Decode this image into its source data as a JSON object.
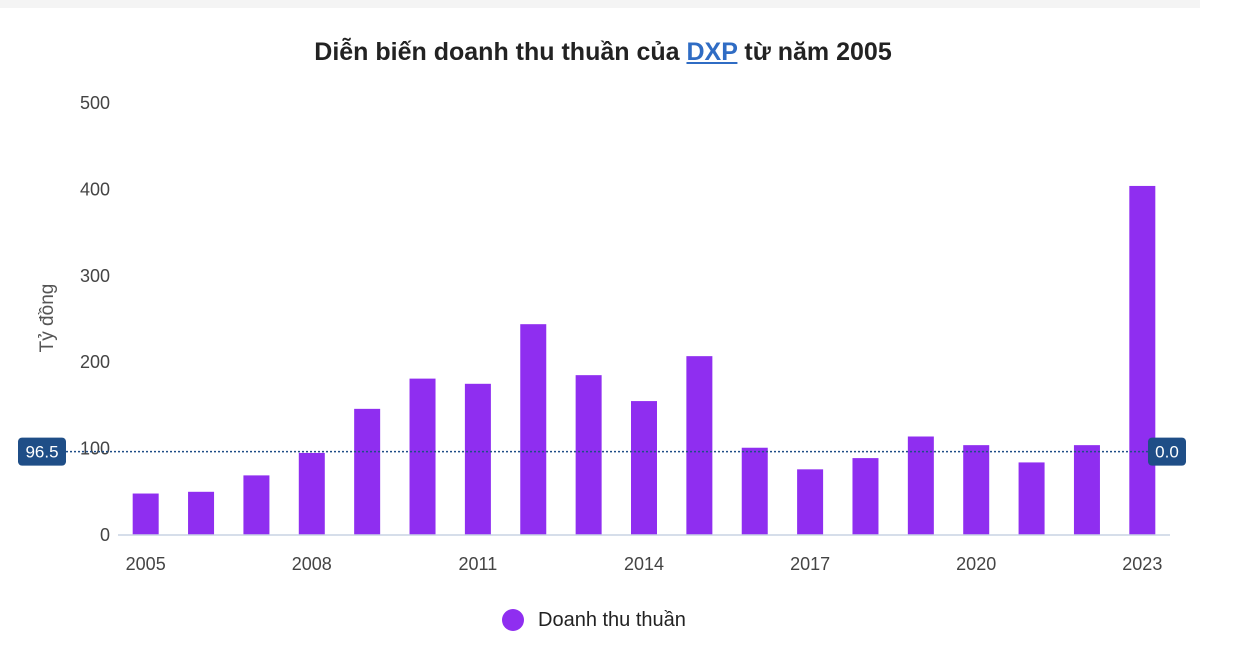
{
  "colors": {
    "bar": "#8f2ef0",
    "badge": "#1f4e87",
    "avg_line": "#1f4e87",
    "axis": "#c8d3e3"
  },
  "chart_data": {
    "type": "bar",
    "title_parts": [
      "Diễn biến doanh thu thuần của ",
      "DXP",
      " từ năm 2005"
    ],
    "ylabel": "Tỷ đồng",
    "ylim": [
      0,
      500
    ],
    "yticks": [
      0,
      100,
      200,
      300,
      400,
      500
    ],
    "x": [
      2005,
      2006,
      2007,
      2008,
      2009,
      2010,
      2011,
      2012,
      2013,
      2014,
      2015,
      2016,
      2017,
      2018,
      2019,
      2020,
      2021,
      2022,
      2023
    ],
    "xtick_labels": [
      "2005",
      "2008",
      "2011",
      "2014",
      "2017",
      "2020",
      "2023"
    ],
    "series": [
      {
        "name": "Doanh thu thuần",
        "values": [
          48,
          50,
          69,
          95,
          146,
          181,
          175,
          244,
          185,
          155,
          207,
          101,
          76,
          89,
          114,
          104,
          84,
          104,
          404
        ]
      }
    ],
    "reference_line": {
      "value": 96.5,
      "left_label": "96.5",
      "right_label": "0.0"
    },
    "legend": {
      "position": "bottom-center"
    }
  }
}
